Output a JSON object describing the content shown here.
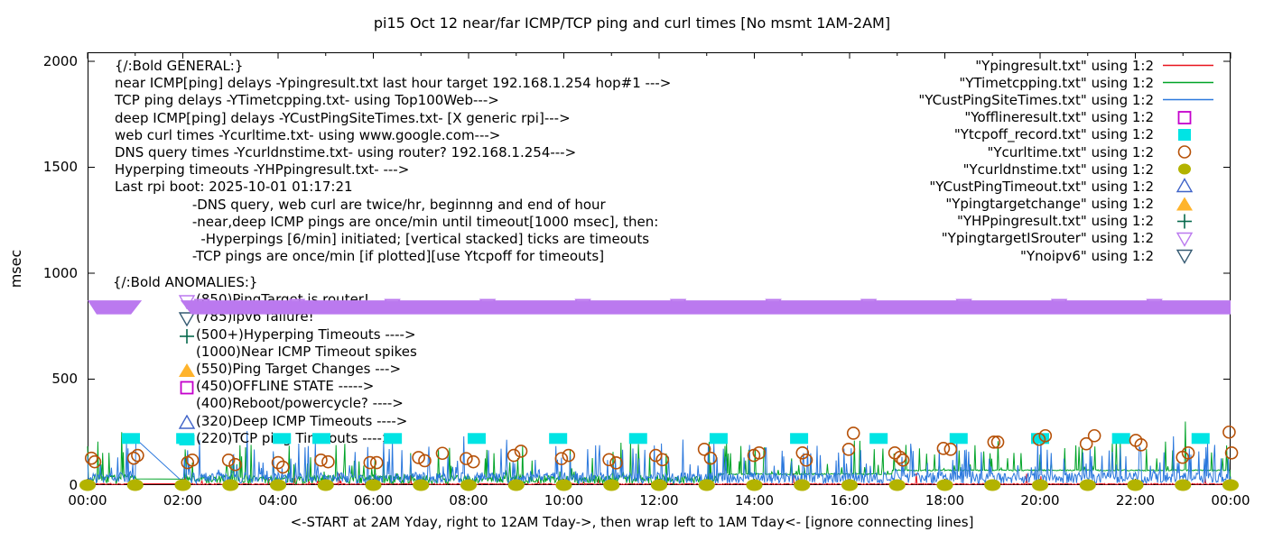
{
  "chart_data": {
    "type": "line+scatter",
    "title": "pi15 Oct 12  near/far ICMP/TCP ping and curl times [No msmt 1AM-2AM]",
    "xlabel": "<-START at 2AM Yday, right to 12AM Tday->, then wrap left to 1AM Tday<- [ignore connecting lines]",
    "ylabel": "msec",
    "x_ticks": [
      "00:00",
      "02:00",
      "04:00",
      "06:00",
      "08:00",
      "10:00",
      "12:00",
      "14:00",
      "16:00",
      "18:00",
      "20:00",
      "22:00",
      "00:00"
    ],
    "y_ticks": [
      "0",
      "500",
      "1000",
      "1500",
      "2000"
    ],
    "x_range_hours": [
      0,
      24
    ],
    "ylim": [
      0,
      2000
    ],
    "grid": false,
    "legend_position": "top-right",
    "no_measurement_gap_hours": [
      1,
      2
    ],
    "annotations": {
      "general": [
        "{/:Bold GENERAL:}",
        "near ICMP[ping] delays -Ypingresult.txt last hour target 192.168.1.254 hop#1 --->",
        "TCP ping delays -YTimetcpping.txt- using Top100Web--->",
        "deep ICMP[ping] delays -YCustPingSiteTimes.txt- [X generic rpi]--->",
        "web curl times -Ycurltime.txt- using www.google.com--->",
        "DNS query times -Ycurldnstime.txt- using router? 192.168.1.254--->",
        "Hyperping timeouts -YHPpingresult.txt- --->",
        "Last rpi boot: 2025-10-01 01:17:21",
        "                  -DNS query, web curl are twice/hr, beginnng and end of hour",
        "                  -near,deep ICMP pings are once/min until timeout[1000 msec], then:",
        "                    -Hyperpings [6/min] initiated; [vertical stacked] ticks are timeouts",
        "                  -TCP pings are once/min [if plotted][use Ytcpoff for timeouts]"
      ],
      "anomalies": {
        "heading": "{/:Bold ANOMALIES:}",
        "rows": [
          {
            "marker": "open-triangle-down",
            "color": "#bb79ef",
            "text": "(850)PingTarget is router!"
          },
          {
            "marker": "open-triangle-down",
            "color": "#355a72",
            "text": "(785)ipv6 failure!"
          },
          {
            "marker": "plus",
            "color": "#07694c",
            "text": "(500+)Hyperping Timeouts ---->"
          },
          {
            "marker": "",
            "color": "",
            "text": "(1000)Near ICMP Timeout spikes"
          },
          {
            "marker": "filled-triangle-up",
            "color": "#ffb42c",
            "text": "(550)Ping Target Changes --->"
          },
          {
            "marker": "open-square",
            "color": "#c400cc",
            "text": "(450)OFFLINE STATE ----->"
          },
          {
            "marker": "",
            "color": "",
            "text": "(400)Reboot/powercycle? ---->"
          },
          {
            "marker": "open-triangle-up",
            "color": "#3f63c8",
            "text": "(320)Deep ICMP Timeouts ---->"
          },
          {
            "marker": "filled-square",
            "color": "#00e4e4",
            "text": "(220)TCP ping Timeouts ---->"
          }
        ]
      }
    },
    "legend": [
      {
        "label": "\"Ypingresult.txt\" using 1:2",
        "sample": "line",
        "color": "#e8131d"
      },
      {
        "label": "\"YTimetcpping.txt\" using 1:2",
        "sample": "line",
        "color": "#00a327"
      },
      {
        "label": "\"YCustPingSiteTimes.txt\" using 1:2",
        "sample": "line",
        "color": "#2b78dd"
      },
      {
        "label": "\"Yofflineresult.txt\" using 1:2",
        "sample": "open-square",
        "color": "#c400cc"
      },
      {
        "label": "\"Ytcpoff_record.txt\" using 1:2",
        "sample": "filled-square",
        "color": "#00e4e4"
      },
      {
        "label": "\"Ycurltime.txt\" using 1:2",
        "sample": "open-circle",
        "color": "#b65108"
      },
      {
        "label": "\"Ycurldnstime.txt\" using 1:2",
        "sample": "filled-circle",
        "color": "#b3b300"
      },
      {
        "label": "\"YCustPingTimeout.txt\" using 1:2",
        "sample": "open-triangle-up",
        "color": "#3f63c8"
      },
      {
        "label": "\"Ypingtargetchange\" using 1:2",
        "sample": "filled-triangle-up",
        "color": "#ffb42c"
      },
      {
        "label": "\"YHPpingresult.txt\" using 1:2",
        "sample": "plus",
        "color": "#07694c"
      },
      {
        "label": "\"YpingtargetISrouter\" using 1:2",
        "sample": "open-triangle-down",
        "color": "#bb79ef"
      },
      {
        "label": "\"Ynoipv6\" using 1:2",
        "sample": "open-triangle-down",
        "color": "#355a72"
      }
    ],
    "series": [
      {
        "name": "Ypingresult.txt",
        "role": "near-icmp-ping-delay",
        "style": "noise-line",
        "color": "#e8131d",
        "base": [
          2,
          6
        ],
        "spike_prob": 0.015,
        "spike": [
          10,
          50
        ],
        "seed": 11
      },
      {
        "name": "YTimetcpping.txt",
        "role": "tcp-ping-delay",
        "style": "noise-line",
        "color": "#00a327",
        "base": [
          6,
          42
        ],
        "spike_prob": 0.11,
        "spike": [
          30,
          150
        ],
        "floors": [
          [
            13.25,
            16.9,
            52
          ],
          [
            16.9,
            24,
            70
          ]
        ],
        "spikes": [
          [
            0.72,
            250
          ],
          [
            11.2,
            200
          ],
          [
            16.1,
            210
          ],
          [
            23.05,
            300
          ]
        ],
        "seed": 7
      },
      {
        "name": "YCustPingSiteTimes.txt",
        "role": "deep-icmp-ping-delay",
        "style": "noise-line",
        "color": "#2b78dd",
        "base": [
          8,
          52
        ],
        "spike_prob": 0.14,
        "spike": [
          25,
          140
        ],
        "spikes": [
          [
            3.35,
            255
          ],
          [
            7.9,
            230
          ],
          [
            12.5,
            215
          ],
          [
            18.25,
            235
          ],
          [
            20.02,
            220
          ],
          [
            22.8,
            230
          ]
        ],
        "seed": 3
      },
      {
        "name": "Yofflineresult.txt",
        "role": "offline-state",
        "style": "points",
        "marker": "open-square",
        "color": "#c400cc",
        "points": []
      },
      {
        "name": "Ytcpoff_record.txt",
        "role": "tcp-ping-timeouts",
        "style": "points",
        "marker": "filled-square",
        "color": "#00e4e4",
        "value_msec": 220,
        "hours": [
          0.91,
          2.05,
          4.08,
          4.91,
          6.41,
          8.17,
          9.88,
          11.56,
          13.25,
          14.94,
          16.61,
          18.29,
          20,
          21.7,
          23.37
        ]
      },
      {
        "name": "Ycurltime.txt",
        "role": "web-curl-times",
        "style": "points",
        "marker": "open-circle",
        "color": "#b65108",
        "points": [
          [
            0.08,
            127
          ],
          [
            0.15,
            110
          ],
          [
            0.97,
            127
          ],
          [
            1.05,
            140
          ],
          [
            2.1,
            106
          ],
          [
            2.2,
            118
          ],
          [
            2.96,
            118
          ],
          [
            3.1,
            97
          ],
          [
            4,
            106
          ],
          [
            4.1,
            85
          ],
          [
            4.9,
            118
          ],
          [
            5.05,
            110
          ],
          [
            5.93,
            106
          ],
          [
            6.07,
            106
          ],
          [
            6.95,
            130
          ],
          [
            7.08,
            115
          ],
          [
            7.45,
            150
          ],
          [
            7.95,
            125
          ],
          [
            8.1,
            110
          ],
          [
            8.95,
            140
          ],
          [
            9.1,
            160
          ],
          [
            9.95,
            125
          ],
          [
            10.1,
            140
          ],
          [
            10.95,
            120
          ],
          [
            11.1,
            105
          ],
          [
            11.93,
            140
          ],
          [
            12.07,
            120
          ],
          [
            12.95,
            169
          ],
          [
            13.08,
            127
          ],
          [
            13.99,
            140
          ],
          [
            14.1,
            152
          ],
          [
            15.01,
            152
          ],
          [
            15.09,
            118
          ],
          [
            15.98,
            169
          ],
          [
            16.08,
            245
          ],
          [
            16.95,
            152
          ],
          [
            17.06,
            131
          ],
          [
            17.12,
            118
          ],
          [
            17.97,
            173
          ],
          [
            18.12,
            169
          ],
          [
            19.03,
            203
          ],
          [
            19.11,
            203
          ],
          [
            19.98,
            216
          ],
          [
            20.11,
            233
          ],
          [
            20.97,
            195
          ],
          [
            21.14,
            233
          ],
          [
            22.01,
            211
          ],
          [
            22.12,
            190
          ],
          [
            22.99,
            131
          ],
          [
            23.11,
            152
          ],
          [
            23.97,
            250
          ],
          [
            24.02,
            152
          ]
        ]
      },
      {
        "name": "Ycurldnstime.txt",
        "role": "dns-query-times",
        "style": "points",
        "marker": "filled-circle",
        "color": "#b3b300",
        "value_msec": 0,
        "hours": [
          0,
          1,
          2,
          3,
          4,
          5,
          6,
          7,
          8,
          9,
          10,
          11,
          12,
          13,
          14,
          15,
          16,
          17,
          18,
          19,
          20,
          21,
          22,
          23,
          24
        ]
      },
      {
        "name": "YCustPingTimeout.txt",
        "role": "deep-icmp-timeouts",
        "style": "points",
        "marker": "open-triangle-up",
        "color": "#3f63c8",
        "points": []
      },
      {
        "name": "Ypingtargetchange",
        "role": "ping-target-changes",
        "style": "points",
        "marker": "filled-triangle-up",
        "color": "#ffb42c",
        "points": []
      },
      {
        "name": "YHPpingresult.txt",
        "role": "hyperping-timeouts",
        "style": "points",
        "marker": "plus",
        "color": "#07694c",
        "points": []
      },
      {
        "name": "YpingtargetISrouter",
        "role": "ping-target-is-router-band",
        "style": "band",
        "marker": "open-triangle-down",
        "color": "#bb79ef",
        "value_msec": 850,
        "band_top_msec": 872,
        "band_bottom_msec": 806,
        "segments_hours": [
          [
            0,
            1.14
          ],
          [
            1.95,
            24
          ]
        ]
      },
      {
        "name": "Ynoipv6",
        "role": "ipv6-failure",
        "style": "points",
        "marker": "open-triangle-down",
        "color": "#355a72",
        "points": []
      }
    ]
  }
}
